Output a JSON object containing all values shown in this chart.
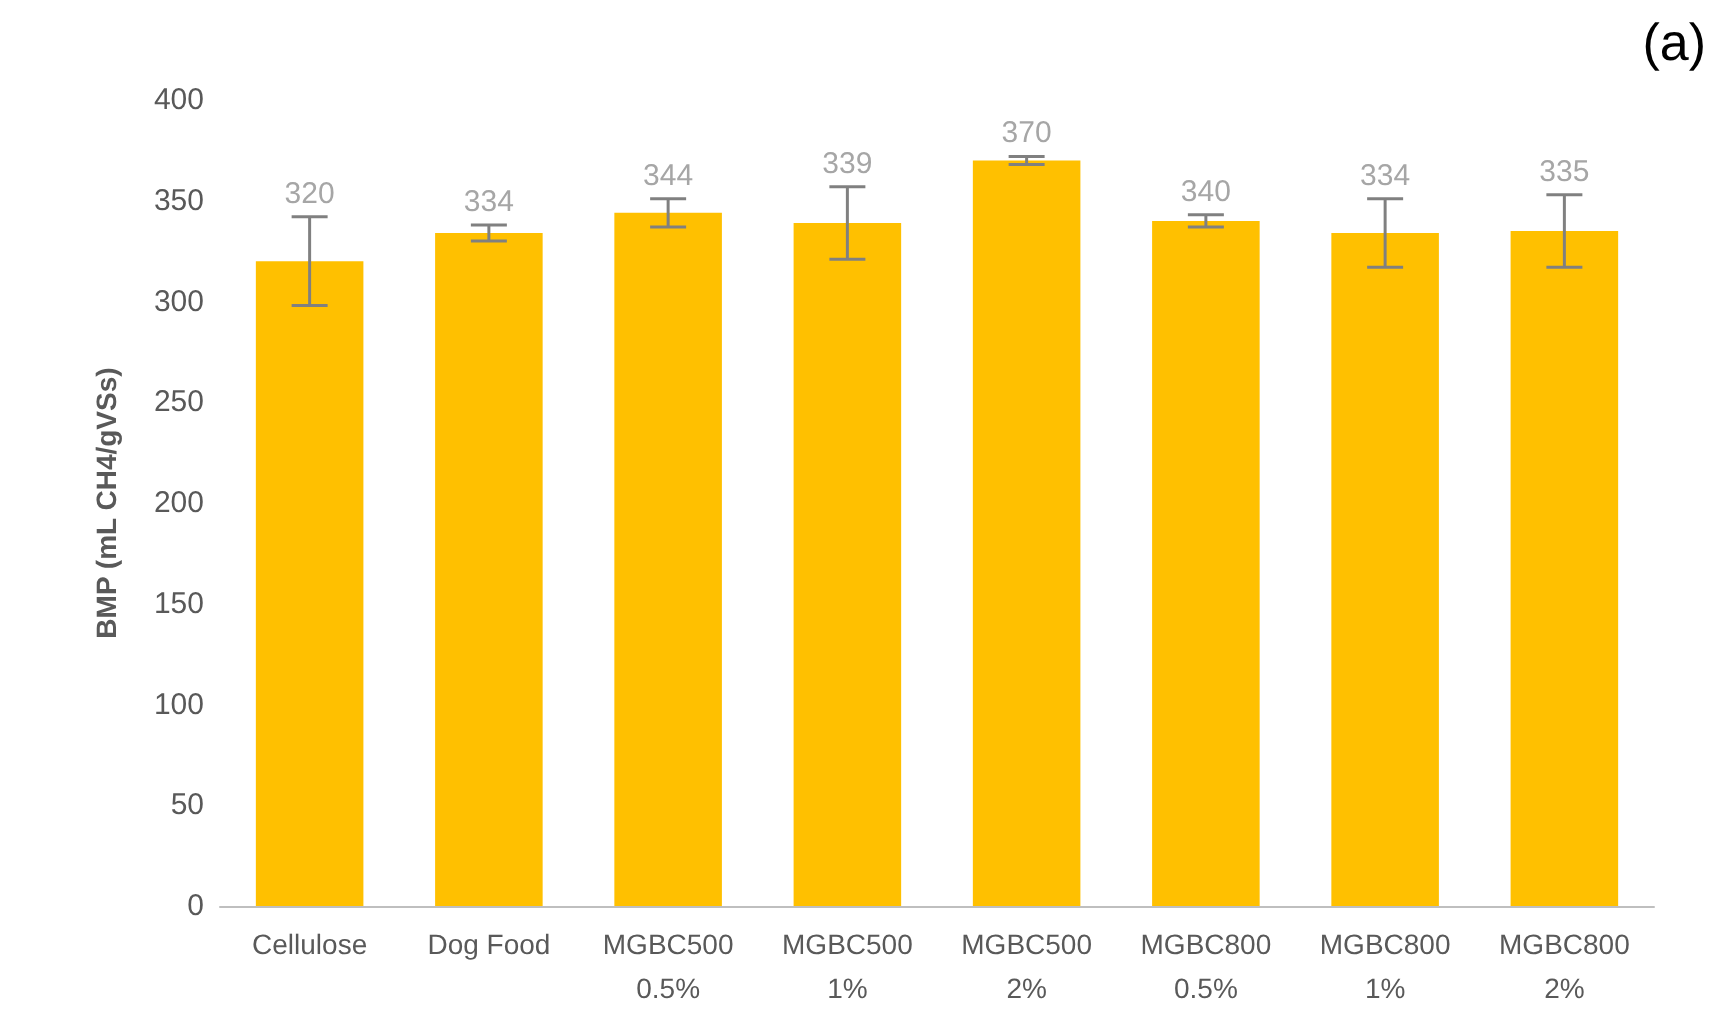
{
  "chart_data": {
    "type": "bar",
    "ylabel": "BMP (mL CH4/gVSs)",
    "annotations": [
      "(a)"
    ],
    "categories": [
      "Cellulose",
      "Dog Food",
      "MGBC500\n0.5%",
      "MGBC500\n1%",
      "MGBC500\n2%",
      "MGBC800\n0.5%",
      "MGBC800\n1%",
      "MGBC800\n2%"
    ],
    "values": [
      320,
      334,
      344,
      339,
      370,
      340,
      334,
      335
    ],
    "errors": [
      22,
      4,
      7,
      18,
      2,
      3,
      17,
      18
    ],
    "color": "#ffc000",
    "data_labels": true,
    "grid": false,
    "ylim": [
      0,
      400
    ],
    "yticks": [
      0,
      50,
      100,
      150,
      200,
      250,
      300,
      350,
      400
    ]
  }
}
